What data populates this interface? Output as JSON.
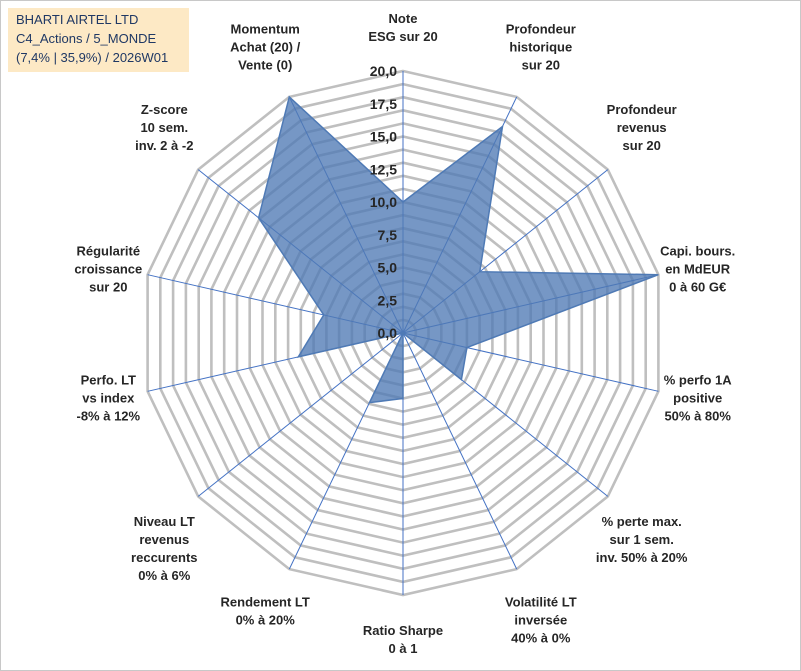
{
  "title_box": {
    "line1": "BHARTI AIRTEL LTD",
    "line2": "C4_Actions / 5_MONDE",
    "line3": "(7,4% | 35,9%) / 2026W01"
  },
  "colors": {
    "grid": "#bfbfbf",
    "spoke": "#4472c4",
    "fill": "#4f7ab5",
    "stroke": "#4f7ab5",
    "title_bg": "#fde9c5",
    "title_text": "#1f3864"
  },
  "chart_data": {
    "type": "radar",
    "rmin": 0,
    "rmax": 20,
    "ticks": [
      "0,0",
      "2,5",
      "5,0",
      "7,5",
      "10,0",
      "12,5",
      "15,0",
      "17,5",
      "20,0"
    ],
    "axes": [
      {
        "lines": [
          "Note",
          "ESG sur 20"
        ],
        "value": 10.0
      },
      {
        "lines": [
          "Profondeur",
          "historique",
          "sur 20"
        ],
        "value": 17.5
      },
      {
        "lines": [
          "Profondeur",
          "revenus",
          "sur 20"
        ],
        "value": 7.5
      },
      {
        "lines": [
          "Capi. bours.",
          "en MdEUR",
          "0 à 60 G€"
        ],
        "value": 20.0
      },
      {
        "lines": [
          "% perfo 1A",
          "positive",
          "50% à 80%"
        ],
        "value": 5.0
      },
      {
        "lines": [
          "% perte max.",
          "sur 1 sem.",
          "inv. 50% à 20%"
        ],
        "value": 5.7
      },
      {
        "lines": [
          "Volatilité LT",
          "inversée",
          "40% à 0%"
        ],
        "value": 0.0
      },
      {
        "lines": [
          "Ratio Sharpe",
          "0 à 1"
        ],
        "value": 5.0
      },
      {
        "lines": [
          "Rendement LT",
          "0% à 20%"
        ],
        "value": 5.9
      },
      {
        "lines": [
          "Niveau LT",
          "revenus",
          "reccurents",
          "0% à 6%"
        ],
        "value": 0.0
      },
      {
        "lines": [
          "Perfo. LT",
          "vs index",
          "-8% à 12%"
        ],
        "value": 8.2
      },
      {
        "lines": [
          "Régularité",
          "croissance",
          "sur 20"
        ],
        "value": 6.2
      },
      {
        "lines": [
          "Z-score",
          "10 sem.",
          "inv. 2 à -2"
        ],
        "value": 14.1
      },
      {
        "lines": [
          "Momentum",
          "Achat (20) /",
          "Vente (0)"
        ],
        "value": 20.0
      }
    ]
  }
}
